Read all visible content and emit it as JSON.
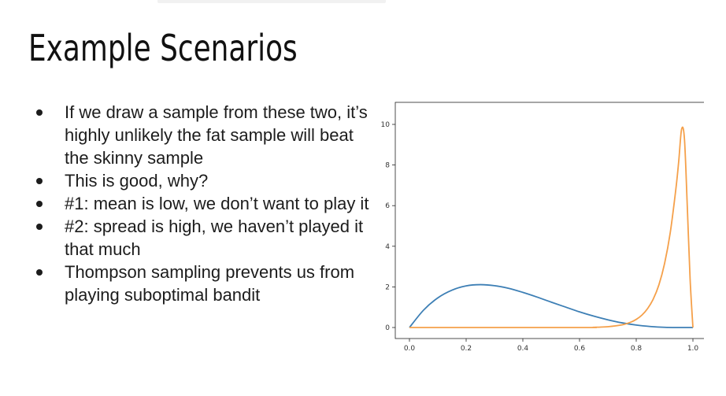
{
  "slide": {
    "title": "Example Scenarios",
    "bullets": [
      "If we draw a sample from these two, it’s highly unlikely the fat sample will beat the skinny sample",
      "This is good, why?",
      "#1: mean is low, we don’t want to play it",
      "#2: spread is high, we haven’t played it that much",
      "Thompson sampling prevents us from playing suboptimal bandit"
    ]
  },
  "chart_data": {
    "type": "line",
    "title": "",
    "xlabel": "",
    "ylabel": "",
    "xlim": [
      0.0,
      1.0
    ],
    "ylim": [
      0,
      10
    ],
    "xticks": [
      "0.0",
      "0.2",
      "0.4",
      "0.6",
      "0.8",
      "1.0"
    ],
    "yticks": [
      "0",
      "2",
      "4",
      "6",
      "8",
      "10"
    ],
    "grid": false,
    "legend": "none",
    "series": [
      {
        "color": "#3d7fb5",
        "x": [
          0.0,
          0.05,
          0.1,
          0.15,
          0.2,
          0.25,
          0.3,
          0.35,
          0.4,
          0.45,
          0.5,
          0.55,
          0.6,
          0.65,
          0.7,
          0.75,
          0.8,
          0.85,
          0.9,
          0.95,
          1.0
        ],
        "y": [
          0.0,
          0.86,
          1.46,
          1.84,
          2.05,
          2.11,
          2.06,
          1.93,
          1.73,
          1.5,
          1.25,
          1.01,
          0.77,
          0.56,
          0.38,
          0.23,
          0.12,
          0.05,
          0.01,
          0.0,
          0.0
        ]
      },
      {
        "color": "#f5a04a",
        "x": [
          0.0,
          0.6,
          0.65,
          0.7,
          0.75,
          0.78,
          0.8,
          0.82,
          0.84,
          0.86,
          0.88,
          0.9,
          0.92,
          0.94,
          0.95,
          0.96,
          0.97,
          0.98,
          0.99,
          1.0
        ],
        "y": [
          0.0,
          0.0,
          0.01,
          0.04,
          0.13,
          0.26,
          0.4,
          0.61,
          0.93,
          1.4,
          2.1,
          3.15,
          4.67,
          6.84,
          8.2,
          9.76,
          9.3,
          6.0,
          2.4,
          0.0
        ]
      }
    ]
  }
}
